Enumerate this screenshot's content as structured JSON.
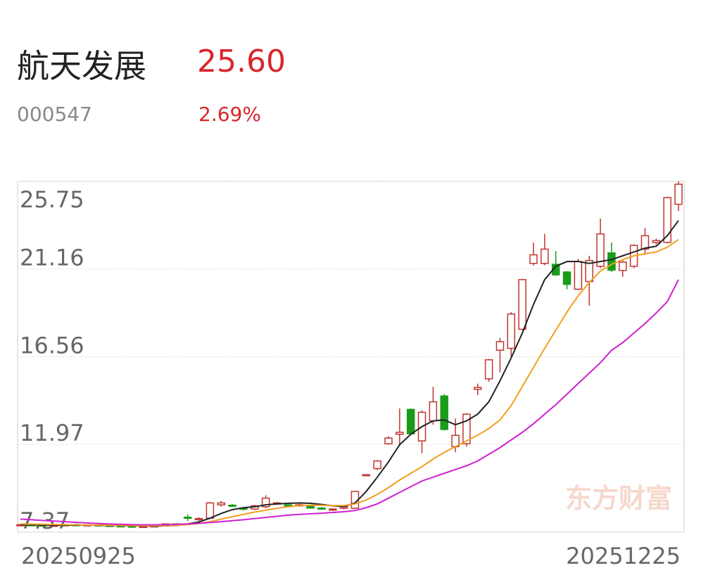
{
  "header": {
    "name": "航天发展",
    "price": "25.60",
    "code": "000547",
    "change": "2.69%"
  },
  "chart_data": {
    "type": "candlestick",
    "watermark": "东方财富",
    "up_color": "#c23531",
    "down_color": "#1a9c1a",
    "grid": true,
    "ylim": [
      7.37,
      25.75
    ],
    "yticks": [
      7.37,
      11.97,
      16.56,
      21.16,
      25.75
    ],
    "categories": [
      "20250925",
      null,
      null,
      null,
      null,
      null,
      null,
      null,
      null,
      null,
      null,
      null,
      null,
      null,
      null,
      null,
      null,
      null,
      null,
      null,
      null,
      null,
      null,
      null,
      null,
      null,
      null,
      null,
      null,
      null,
      null,
      null,
      null,
      null,
      null,
      null,
      null,
      null,
      null,
      null,
      null,
      null,
      null,
      null,
      null,
      null,
      null,
      null,
      null,
      null,
      null,
      null,
      null,
      null,
      null,
      null,
      null,
      null,
      null,
      "20251225"
    ],
    "candles": {
      "open": [
        7.72,
        7.76,
        7.74,
        7.7,
        7.73,
        7.76,
        7.74,
        7.75,
        7.72,
        7.7,
        7.72,
        7.63,
        7.67,
        7.7,
        7.8,
        8.15,
        8.02,
        8.1,
        8.8,
        8.78,
        8.62,
        8.58,
        8.7,
        8.85,
        8.8,
        8.75,
        8.75,
        8.63,
        8.55,
        8.62,
        8.62,
        10.35,
        10.7,
        12.0,
        12.5,
        13.8,
        12.15,
        13.2,
        14.5,
        11.85,
        12.0,
        14.85,
        15.4,
        16.9,
        17.0,
        18.0,
        21.45,
        21.45,
        21.4,
        21.0,
        20.1,
        20.5,
        21.3,
        22.0,
        21.08,
        21.3,
        22.2,
        22.55,
        22.55,
        24.55
      ],
      "high": [
        7.78,
        7.8,
        7.78,
        7.76,
        7.8,
        7.82,
        7.78,
        7.8,
        7.76,
        7.74,
        7.74,
        7.7,
        7.74,
        7.82,
        7.85,
        8.3,
        8.15,
        8.95,
        9.0,
        8.85,
        8.68,
        8.8,
        9.3,
        8.95,
        8.85,
        8.85,
        8.8,
        8.68,
        8.62,
        8.75,
        9.52,
        10.4,
        11.15,
        12.4,
        13.85,
        13.85,
        13.75,
        14.98,
        14.6,
        13.32,
        13.6,
        15.15,
        16.45,
        17.55,
        18.9,
        20.65,
        22.55,
        23.0,
        22.1,
        21.05,
        21.7,
        21.85,
        23.8,
        22.55,
        21.6,
        22.45,
        23.3,
        22.75,
        24.95,
        25.75
      ],
      "low": [
        7.68,
        7.7,
        7.68,
        7.66,
        7.7,
        7.72,
        7.7,
        7.7,
        7.66,
        7.64,
        7.6,
        7.6,
        7.64,
        7.68,
        7.72,
        7.95,
        7.95,
        8.05,
        8.7,
        8.7,
        8.5,
        8.52,
        8.62,
        8.8,
        8.7,
        8.7,
        8.6,
        8.55,
        8.48,
        8.55,
        8.58,
        10.33,
        10.62,
        11.95,
        11.9,
        12.5,
        11.5,
        13.0,
        12.7,
        11.55,
        11.85,
        14.55,
        15.25,
        15.75,
        16.5,
        17.95,
        21.34,
        21.35,
        20.8,
        20.1,
        20.05,
        19.24,
        21.2,
        21.0,
        20.75,
        21.2,
        21.9,
        22.45,
        22.5,
        24.2
      ],
      "close": [
        7.76,
        7.74,
        7.7,
        7.73,
        7.76,
        7.74,
        7.75,
        7.72,
        7.7,
        7.68,
        7.63,
        7.67,
        7.7,
        7.8,
        7.78,
        8.1,
        8.08,
        8.9,
        8.9,
        8.75,
        8.57,
        8.75,
        9.15,
        8.9,
        8.75,
        8.8,
        8.63,
        8.6,
        8.58,
        8.7,
        9.5,
        10.38,
        11.1,
        12.3,
        12.6,
        12.52,
        13.65,
        14.2,
        12.75,
        12.44,
        13.55,
        14.95,
        16.4,
        17.35,
        18.8,
        20.6,
        21.9,
        22.2,
        20.85,
        20.35,
        21.55,
        21.6,
        23.0,
        21.1,
        21.52,
        22.4,
        22.9,
        22.65,
        24.9,
        25.6
      ]
    },
    "lines": [
      {
        "color": "#222222",
        "values": [
          7.75,
          7.75,
          7.74,
          7.73,
          7.73,
          7.74,
          7.74,
          7.73,
          7.72,
          7.71,
          7.7,
          7.69,
          7.68,
          7.7,
          7.72,
          7.8,
          7.9,
          8.1,
          8.35,
          8.55,
          8.65,
          8.7,
          8.8,
          8.85,
          8.88,
          8.9,
          8.88,
          8.82,
          8.75,
          8.7,
          8.9,
          9.5,
          10.25,
          11.05,
          11.95,
          12.5,
          12.9,
          13.2,
          13.25,
          13.0,
          13.2,
          13.55,
          14.2,
          15.3,
          16.5,
          17.8,
          19.3,
          20.6,
          21.3,
          21.55,
          21.55,
          21.45,
          21.55,
          21.65,
          21.85,
          22.05,
          22.25,
          22.35,
          22.9,
          23.7
        ]
      },
      {
        "color": "#f0a020",
        "values": [
          7.8,
          7.79,
          7.78,
          7.77,
          7.76,
          7.75,
          7.74,
          7.74,
          7.73,
          7.72,
          7.71,
          7.7,
          7.7,
          7.71,
          7.73,
          7.76,
          7.82,
          7.92,
          8.05,
          8.18,
          8.3,
          8.42,
          8.52,
          8.62,
          8.7,
          8.76,
          8.78,
          8.78,
          8.76,
          8.76,
          8.85,
          9.05,
          9.35,
          9.7,
          10.1,
          10.45,
          10.8,
          11.2,
          11.55,
          11.85,
          12.15,
          12.45,
          12.8,
          13.25,
          14.0,
          15.0,
          16.0,
          17.0,
          17.95,
          18.9,
          19.75,
          20.45,
          21.05,
          21.4,
          21.65,
          21.85,
          21.95,
          22.05,
          22.3,
          22.7
        ]
      },
      {
        "color": "#d020d0",
        "values": [
          8.05,
          8.02,
          7.98,
          7.95,
          7.92,
          7.88,
          7.85,
          7.82,
          7.8,
          7.78,
          7.76,
          7.75,
          7.75,
          7.76,
          7.78,
          7.8,
          7.83,
          7.87,
          7.92,
          7.97,
          8.02,
          8.08,
          8.14,
          8.2,
          8.26,
          8.3,
          8.33,
          8.36,
          8.4,
          8.44,
          8.5,
          8.65,
          8.85,
          9.15,
          9.45,
          9.75,
          10.05,
          10.25,
          10.45,
          10.65,
          10.85,
          11.1,
          11.45,
          11.8,
          12.2,
          12.6,
          13.05,
          13.55,
          14.05,
          14.6,
          15.15,
          15.7,
          16.25,
          16.9,
          17.3,
          17.8,
          18.3,
          18.85,
          19.45,
          20.6
        ]
      }
    ]
  }
}
